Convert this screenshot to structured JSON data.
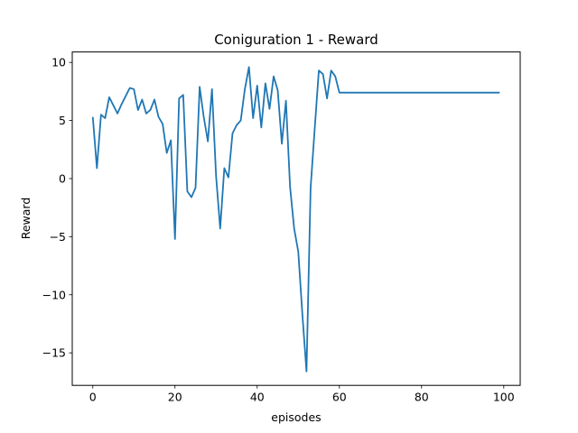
{
  "chart_data": {
    "type": "line",
    "title": "Coniguration 1 - Reward",
    "xlabel": "episodes",
    "ylabel": "Reward",
    "xlim": [
      -5,
      104
    ],
    "ylim": [
      -17.8,
      10.9
    ],
    "xticks": [
      0,
      20,
      40,
      60,
      80,
      100
    ],
    "yticks": [
      10,
      5,
      0,
      -5,
      -10,
      -15
    ],
    "xtick_labels": [
      "0",
      "20",
      "40",
      "60",
      "80",
      "100"
    ],
    "ytick_labels": [
      "10",
      "5",
      "0",
      "−5",
      "−10",
      "−15"
    ],
    "grid": false,
    "legend": "none",
    "series": [
      {
        "color": "#1f77b4",
        "x": [
          0,
          1,
          2,
          3,
          4,
          5,
          6,
          7,
          8,
          9,
          10,
          11,
          12,
          13,
          14,
          15,
          16,
          17,
          18,
          19,
          20,
          21,
          22,
          23,
          24,
          25,
          26,
          27,
          28,
          29,
          30,
          31,
          32,
          33,
          34,
          35,
          36,
          37,
          38,
          39,
          40,
          41,
          42,
          43,
          44,
          45,
          46,
          47,
          48,
          49,
          50,
          51,
          52,
          53,
          54,
          55,
          56,
          57,
          58,
          59,
          60,
          61,
          62,
          63,
          64,
          65,
          66,
          67,
          68,
          69,
          70,
          71,
          72,
          73,
          74,
          75,
          76,
          77,
          78,
          79,
          80,
          81,
          82,
          83,
          84,
          85,
          86,
          87,
          88,
          89,
          90,
          91,
          92,
          93,
          94,
          95,
          96,
          97,
          98,
          99
        ],
        "y": [
          5.3,
          0.9,
          5.5,
          5.2,
          7.0,
          6.3,
          5.6,
          6.4,
          7.1,
          7.8,
          7.7,
          5.9,
          6.8,
          5.6,
          5.9,
          6.8,
          5.3,
          4.7,
          2.2,
          3.3,
          -5.2,
          6.9,
          7.2,
          -1.1,
          -1.6,
          -0.8,
          7.9,
          5.3,
          3.2,
          7.7,
          0.2,
          -4.3,
          0.9,
          0.1,
          3.9,
          4.6,
          5.0,
          7.7,
          9.6,
          5.2,
          8.0,
          4.4,
          8.2,
          6.0,
          8.8,
          7.6,
          3.0,
          6.7,
          -0.7,
          -4.3,
          -6.3,
          -11.7,
          -16.6,
          -0.8,
          4.3,
          9.3,
          9.0,
          6.9,
          9.3,
          8.8,
          7.4,
          7.4,
          7.4,
          7.4,
          7.4,
          7.4,
          7.4,
          7.4,
          7.4,
          7.4,
          7.4,
          7.4,
          7.4,
          7.4,
          7.4,
          7.4,
          7.4,
          7.4,
          7.4,
          7.4,
          7.4,
          7.4,
          7.4,
          7.4,
          7.4,
          7.4,
          7.4,
          7.4,
          7.4,
          7.4,
          7.4,
          7.4,
          7.4,
          7.4,
          7.4,
          7.4,
          7.4,
          7.4,
          7.4,
          7.4
        ]
      }
    ]
  }
}
